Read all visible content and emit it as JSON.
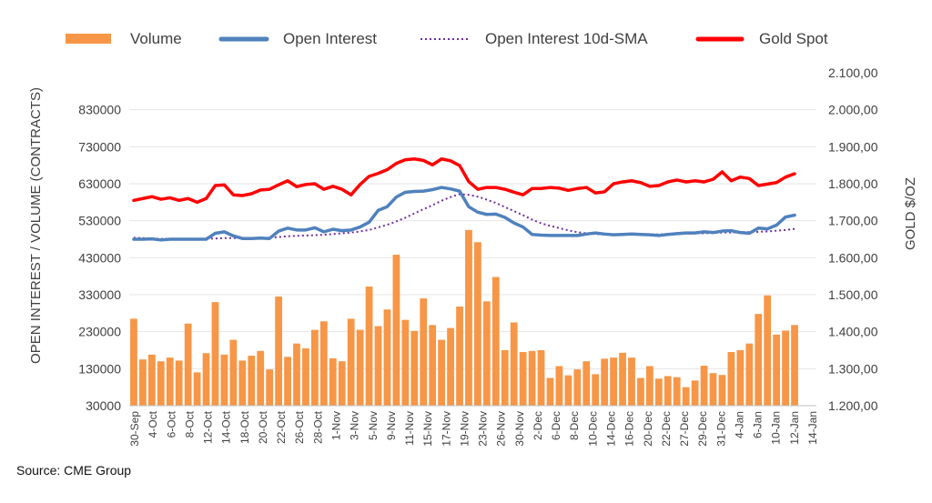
{
  "chart_data": {
    "type": "bar+line",
    "title": "",
    "legend": [
      {
        "key": "volume",
        "label": "Volume",
        "style": "bar",
        "color": "#F79646"
      },
      {
        "key": "open_interest",
        "label": "Open Interest",
        "style": "line",
        "color": "#4F81BD"
      },
      {
        "key": "oi_sma",
        "label": "Open Interest 10d-SMA",
        "style": "dotted",
        "color": "#7030A0"
      },
      {
        "key": "gold",
        "label": "Gold Spot",
        "style": "line",
        "color": "#FF0000"
      }
    ],
    "ylabel_left": "OPEN INTEREST / VOLUME (CONTRACTS)",
    "ylabel_right": "GOLD $/OZ",
    "yticks_left": [
      "830000",
      "730000",
      "630000",
      "530000",
      "430000",
      "330000",
      "230000",
      "130000",
      "30000"
    ],
    "yticks_right": [
      "2.100,00",
      "2.000,00",
      "1.900,00",
      "1.800,00",
      "1.700,00",
      "1.600,00",
      "1.500,00",
      "1.400,00",
      "1.300,00",
      "1.200,00"
    ],
    "ylim_left": [
      30000,
      930000
    ],
    "ylim_right": [
      1200,
      2100
    ],
    "xtick_labels": [
      "30-Sep",
      "4-Oct",
      "6-Oct",
      "8-Oct",
      "12-Oct",
      "14-Oct",
      "18-Oct",
      "20-Oct",
      "22-Oct",
      "26-Oct",
      "28-Oct",
      "1-Nov",
      "3-Nov",
      "5-Nov",
      "9-Nov",
      "11-Nov",
      "15-Nov",
      "17-Nov",
      "19-Nov",
      "23-Nov",
      "26-Nov",
      "30-Nov",
      "2-Dec",
      "6-Dec",
      "8-Dec",
      "10-Dec",
      "14-Dec",
      "16-Dec",
      "20-Dec",
      "22-Dec",
      "27-Dec",
      "29-Dec",
      "31-Dec",
      "4-Jan",
      "6-Jan",
      "10-Jan",
      "12-Jan",
      "14-Jan"
    ],
    "series": [
      {
        "name": "Volume",
        "values": [
          265000,
          155000,
          168000,
          150000,
          160000,
          152000,
          252000,
          120000,
          172000,
          310000,
          168000,
          208000,
          152000,
          165000,
          178000,
          128000,
          325000,
          162000,
          198000,
          185000,
          235000,
          258000,
          158000,
          150000,
          265000,
          235000,
          352000,
          245000,
          290000,
          438000,
          262000,
          232000,
          320000,
          248000,
          208000,
          240000,
          298000,
          505000,
          472000,
          312000,
          378000,
          180000,
          255000,
          175000,
          178000,
          180000,
          105000,
          137000,
          112000,
          128000,
          150000,
          115000,
          157000,
          160000,
          173000,
          160000,
          105000,
          137000,
          103000,
          110000,
          107000,
          80000,
          98000,
          138000,
          118000,
          113000,
          175000,
          180000,
          198000,
          278000,
          328000,
          222000,
          233000,
          248000
        ]
      },
      {
        "name": "Open Interest",
        "values": [
          480000,
          480000,
          481000,
          478000,
          480000,
          480000,
          480000,
          480000,
          480000,
          496000,
          500000,
          489000,
          482000,
          482000,
          483000,
          482000,
          502000,
          510000,
          505000,
          505000,
          511000,
          500000,
          507000,
          503000,
          505000,
          513000,
          526000,
          558000,
          568000,
          594000,
          607000,
          609000,
          610000,
          614000,
          620000,
          616000,
          610000,
          568000,
          553000,
          547000,
          548000,
          539000,
          524000,
          513000,
          493000,
          491000,
          490000,
          490000,
          490000,
          490000,
          494000,
          497000,
          494000,
          492000,
          493000,
          494000,
          493000,
          492000,
          490000,
          493000,
          495000,
          497000,
          497000,
          500000,
          498000,
          502000,
          503000,
          498000,
          496000,
          510000,
          508000,
          518000,
          540000,
          545000
        ]
      },
      {
        "name": "Open Interest 10d-SMA",
        "values": [
          484000,
          483000,
          482000,
          481000,
          481000,
          480000,
          480000,
          480000,
          481000,
          482000,
          483000,
          483000,
          483000,
          483000,
          483000,
          484000,
          486000,
          488000,
          489000,
          490000,
          491000,
          492000,
          494000,
          496000,
          498000,
          501000,
          505000,
          512000,
          519000,
          528000,
          538000,
          550000,
          561000,
          572000,
          584000,
          594000,
          602000,
          600000,
          595000,
          587000,
          578000,
          567000,
          556000,
          545000,
          533000,
          523000,
          516000,
          510000,
          504000,
          499000,
          496000,
          494000,
          493000,
          492000,
          492000,
          493000,
          493000,
          493000,
          493000,
          494000,
          494000,
          495000,
          496000,
          496000,
          497000,
          498000,
          498000,
          499000,
          499000,
          500000,
          501000,
          503000,
          505000,
          508000
        ]
      },
      {
        "name": "Gold Spot",
        "values": [
          1755,
          1760,
          1765,
          1758,
          1762,
          1755,
          1760,
          1750,
          1760,
          1795,
          1797,
          1770,
          1768,
          1773,
          1783,
          1785,
          1797,
          1808,
          1792,
          1798,
          1800,
          1785,
          1793,
          1785,
          1770,
          1798,
          1820,
          1828,
          1838,
          1855,
          1865,
          1867,
          1863,
          1851,
          1867,
          1862,
          1849,
          1806,
          1785,
          1790,
          1790,
          1785,
          1777,
          1770,
          1787,
          1787,
          1790,
          1788,
          1782,
          1787,
          1790,
          1775,
          1778,
          1800,
          1805,
          1808,
          1803,
          1793,
          1795,
          1805,
          1810,
          1805,
          1808,
          1805,
          1812,
          1832,
          1808,
          1818,
          1814,
          1795,
          1799,
          1803,
          1818,
          1827
        ]
      }
    ]
  },
  "source": "Source: CME Group"
}
